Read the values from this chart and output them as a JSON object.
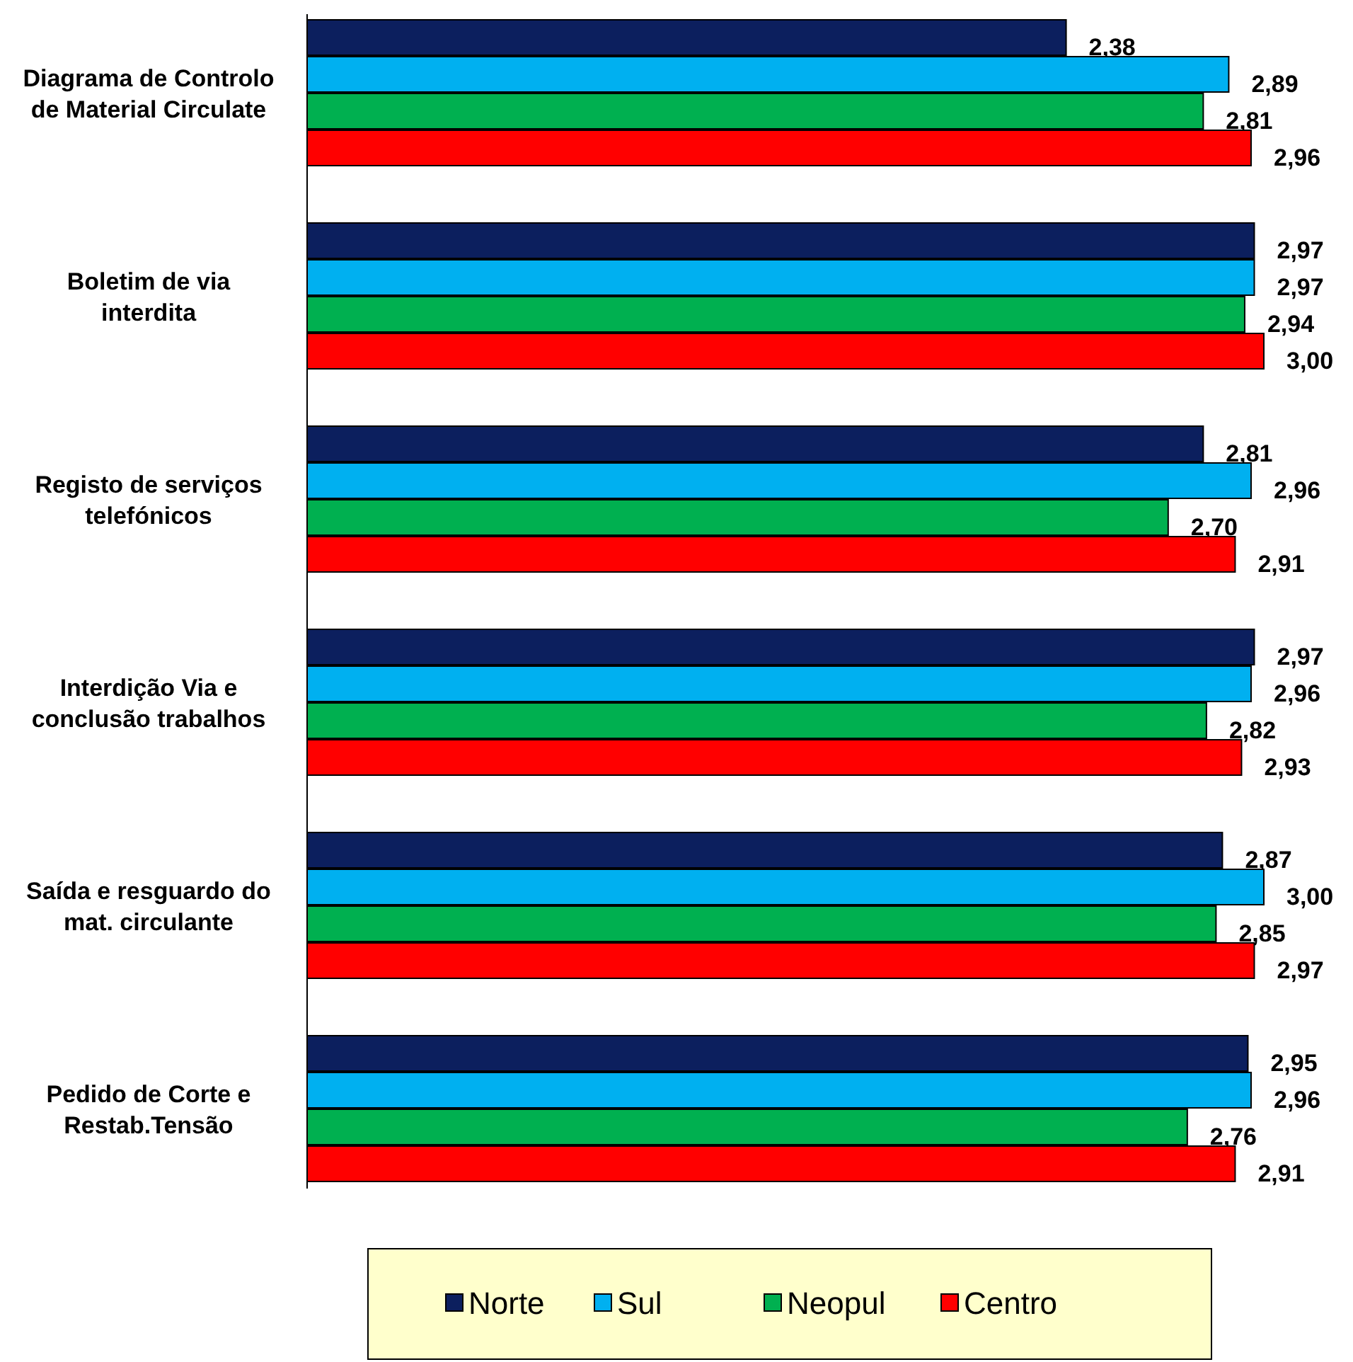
{
  "chart_data": {
    "type": "bar",
    "orientation": "horizontal",
    "categories": [
      "Diagrama de Controlo de Material Circulate",
      "Boletim de via interdita",
      "Registo de serviços telefónicos",
      "Interdição Via e conclusão trabalhos",
      "Saída e resguardo do mat. circulante",
      "Pedido de Corte e Restab.Tensão"
    ],
    "series": [
      {
        "name": "Norte",
        "color": "#0c1f5e",
        "values": [
          2.38,
          2.97,
          2.81,
          2.97,
          2.87,
          2.95
        ],
        "value_labels": [
          "2,38",
          "2,97",
          "2,81",
          "2,97",
          "2,87",
          "2,95"
        ]
      },
      {
        "name": "Sul",
        "color": "#00b0f0",
        "values": [
          2.89,
          2.97,
          2.96,
          2.96,
          3.0,
          2.96
        ],
        "value_labels": [
          "2,89",
          "2,97",
          "2,96",
          "2,96",
          "3,00",
          "2,96"
        ]
      },
      {
        "name": "Neopul",
        "color": "#00b050",
        "values": [
          2.81,
          2.94,
          2.7,
          2.82,
          2.85,
          2.76
        ],
        "value_labels": [
          "2,81",
          "2,94",
          "2,70",
          "2,82",
          "2,85",
          "2,76"
        ]
      },
      {
        "name": "Centro",
        "color": "#ff0000",
        "values": [
          2.96,
          3.0,
          2.91,
          2.93,
          2.97,
          2.91
        ],
        "value_labels": [
          "2,96",
          "3,00",
          "2,91",
          "2,93",
          "2,97",
          "2,91"
        ]
      }
    ],
    "xlim": [
      0,
      3
    ],
    "tick_labels": "y",
    "legend": "bottom"
  }
}
